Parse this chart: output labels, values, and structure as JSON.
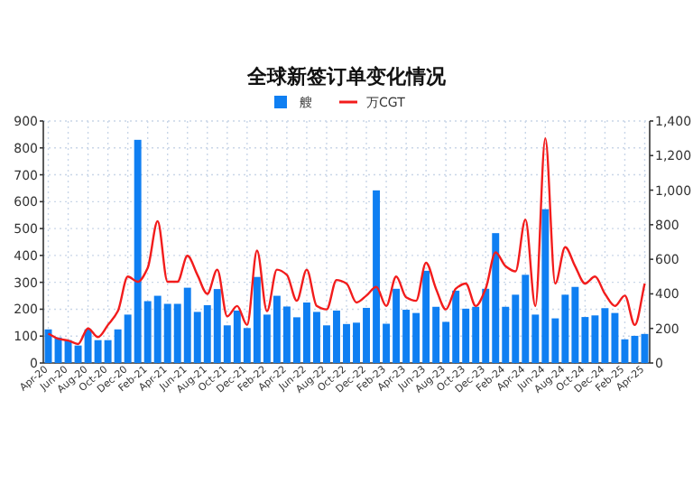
{
  "chart_data": {
    "type": "bar",
    "title": "全球新签订单变化情况",
    "categories": [
      "Apr-20",
      null,
      "Jun-20",
      null,
      "Aug-20",
      null,
      "Oct-20",
      null,
      "Dec-20",
      null,
      "Feb-21",
      null,
      "Apr-21",
      null,
      "Jun-21",
      null,
      "Aug-21",
      null,
      "Oct-21",
      null,
      "Dec-21",
      null,
      "Feb-22",
      null,
      "Apr-22",
      null,
      "Jun-22",
      null,
      "Aug-22",
      null,
      "Oct-22",
      null,
      "Dec-22",
      null,
      "Feb-23",
      null,
      "Apr-23",
      null,
      "Jun-23",
      null,
      "Aug-23",
      null,
      "Oct-23",
      null,
      "Dec-23",
      null,
      "Feb-24",
      null,
      "Apr-24",
      null,
      "Jun-24",
      null,
      "Aug-24",
      null,
      "Oct-24",
      null,
      "Dec-24",
      null,
      "Feb-25",
      null,
      "Apr-25"
    ],
    "series": [
      {
        "name": "艘",
        "color": "#0f7ff2",
        "values": [
          125,
          95,
          85,
          65,
          125,
          85,
          85,
          125,
          180,
          830,
          230,
          250,
          220,
          220,
          280,
          190,
          215,
          275,
          140,
          195,
          130,
          320,
          180,
          250,
          210,
          170,
          225,
          190,
          140,
          195,
          145,
          150,
          205,
          642,
          146,
          276,
          198,
          186,
          343,
          209,
          153,
          269,
          202,
          209,
          276,
          483,
          209,
          254,
          328,
          180,
          572,
          166,
          254,
          283,
          171,
          177,
          204,
          186,
          88,
          101,
          108
        ]
      },
      {
        "name": "万CGT",
        "type": "line",
        "axis": "y2",
        "color": "#f21c1c",
        "values": [
          170,
          140,
          130,
          110,
          200,
          150,
          220,
          300,
          500,
          470,
          550,
          820,
          470,
          470,
          620,
          510,
          400,
          540,
          270,
          330,
          220,
          650,
          300,
          540,
          510,
          360,
          540,
          330,
          310,
          480,
          460,
          350,
          390,
          440,
          330,
          500,
          380,
          360,
          580,
          430,
          310,
          430,
          460,
          330,
          430,
          640,
          560,
          530,
          830,
          330,
          1300,
          460,
          670,
          560,
          460,
          500,
          400,
          330,
          390,
          220,
          460
        ]
      }
    ],
    "ylim": [
      0,
      900
    ],
    "yticks": [
      0,
      100,
      200,
      300,
      400,
      500,
      600,
      700,
      800,
      900
    ],
    "y2lim": [
      0,
      1400
    ],
    "y2ticks": [
      0,
      200,
      400,
      600,
      800,
      {
        "value": 1000,
        "label": "1,000"
      },
      {
        "value": 1200,
        "label": "1,200"
      },
      {
        "value": 1400,
        "label": "1,400"
      }
    ],
    "grid": true,
    "legend": "top"
  }
}
